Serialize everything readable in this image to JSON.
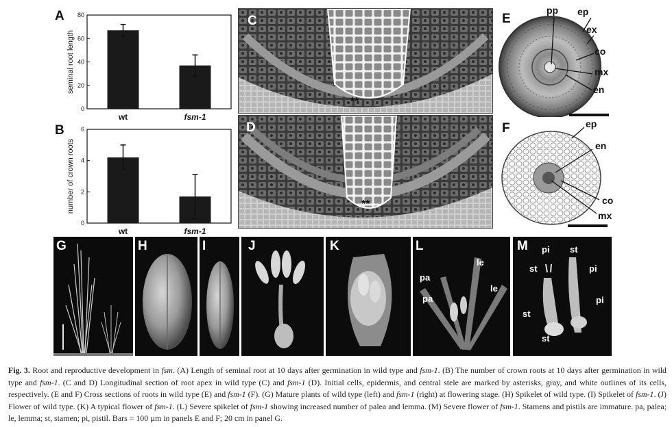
{
  "panel_labels": {
    "a": "A",
    "b": "B",
    "c": "C",
    "d": "D",
    "e": "E",
    "f": "F",
    "g": "G",
    "h": "H",
    "i": "I",
    "j": "J",
    "k": "K",
    "l": "L",
    "m": "M"
  },
  "chart_data": [
    {
      "type": "bar",
      "categories": [
        "wt",
        "fsm-1"
      ],
      "values": [
        67,
        37
      ],
      "errors": [
        5,
        9
      ],
      "ylabel": "seminal root length",
      "ylim": [
        0,
        80
      ],
      "yticks": [
        "0",
        "20",
        "40",
        "60",
        "80"
      ],
      "bar_color": "#1a1a1a"
    },
    {
      "type": "bar",
      "categories": [
        "wt",
        "fsm-1"
      ],
      "values": [
        4.2,
        1.7
      ],
      "errors": [
        0.8,
        1.4
      ],
      "ylabel": "number of crown roots",
      "ylim": [
        0,
        6
      ],
      "yticks": [
        "0",
        "2",
        "4",
        "6"
      ],
      "bar_color": "#1a1a1a"
    }
  ],
  "annotations_e": {
    "pp": "pp",
    "ep": "ep",
    "ex": "ex",
    "co": "co",
    "mx": "mx",
    "en": "en"
  },
  "annotations_f": {
    "ep": "ep",
    "en": "en",
    "co": "co",
    "mx": "mx"
  },
  "annotations_l": {
    "le1": "le",
    "le2": "le",
    "pa1": "pa",
    "pa2": "pa"
  },
  "annotations_m": {
    "pi1": "pi",
    "st1": "st",
    "st2": "st",
    "pi2": "pi",
    "pi3": "pi",
    "st3": "st",
    "st4": "st"
  },
  "asterisks": "**",
  "caption": {
    "fig": "Fig. 3.",
    "s1": " Root and reproductive development in ",
    "g1": "fsm",
    "s2": ". (A) Length of seminal root at 10 days after germination in wild type and ",
    "g2": "fsm-1",
    "s3": ". (B) The number of crown roots at 10 days after germination in wild type and ",
    "g3": "fsm-1",
    "s4": ". (C and D) Longitudinal section of root apex in wild type (C) and ",
    "g4": "fsm-1",
    "s5": " (D). Initial cells, epidermis, and central stele are marked by asterisks, gray, and white outlines of its cells, respectively. (E and F) Cross sections of roots in wild type (E) and ",
    "g5": "fsm-1",
    "s6": " (F). (G) Mature plants of wild type (left) and ",
    "g6": "fsm-1",
    "s7": " (right) at flowering stage. (H) Spikelet of wild type. (I) Spikelet of ",
    "g7": "fsm-1",
    "s8": ". (J) Flower of wild type. (K) A typical flower of ",
    "g8": "fsm-1",
    "s9": ". (L) Severe spikelet of ",
    "g9": "fsm-1",
    "s10": " showing increased number of palea and lemma. (M) Severe flower of ",
    "g10": "fsm-1",
    "s11": ". Stamens and pistils are immature. pa, palea; le, lemma; st, stamen; pi, pistil. Bars = 100 µm in panels E and F; 20 cm in panel G."
  }
}
